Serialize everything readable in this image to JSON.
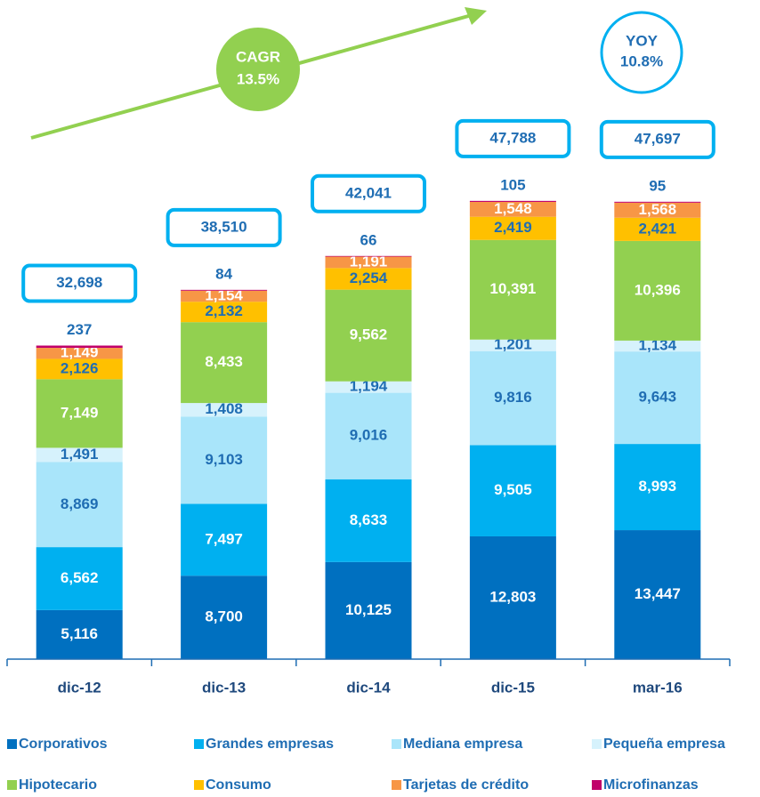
{
  "chart_data": {
    "type": "stacked_bar",
    "categories": [
      "dic-12",
      "dic-13",
      "dic-14",
      "dic-15",
      "mar-16"
    ],
    "series": [
      {
        "name": "Corporativos",
        "color": "#0070c0",
        "label_color": "#ffffff",
        "values": [
          5116,
          8700,
          10125,
          12803,
          13447
        ],
        "value_labels": [
          "5,116",
          "8,700",
          "10,125",
          "12,803",
          "13,447"
        ]
      },
      {
        "name": "Grandes empresas",
        "color": "#00b0f0",
        "label_color": "#ffffff",
        "values": [
          6562,
          7497,
          8633,
          9505,
          8993
        ],
        "value_labels": [
          "6,562",
          "7,497",
          "8,633",
          "9,505",
          "8,993"
        ]
      },
      {
        "name": "Mediana empresa",
        "color": "#a9e5fa",
        "label_color": "#1f6db3",
        "values": [
          8869,
          9103,
          9016,
          9816,
          9643
        ],
        "value_labels": [
          "8,869",
          "9,103",
          "9,016",
          "9,816",
          "9,643"
        ]
      },
      {
        "name": "Pequeña empresa",
        "color": "#d6f2fc",
        "label_color": "#1f6db3",
        "values": [
          1491,
          1408,
          1194,
          1201,
          1134
        ],
        "value_labels": [
          "1,491",
          "1,408",
          "1,194",
          "1,201",
          "1,134"
        ]
      },
      {
        "name": "Hipotecario",
        "color": "#92d050",
        "label_color": "#ffffff",
        "values": [
          7149,
          8433,
          9562,
          10391,
          10396
        ],
        "value_labels": [
          "7,149",
          "8,433",
          "9,562",
          "10,391",
          "10,396"
        ]
      },
      {
        "name": "Consumo",
        "color": "#ffc000",
        "label_color": "#1f6db3",
        "values": [
          2126,
          2132,
          2254,
          2419,
          2421
        ],
        "value_labels": [
          "2,126",
          "2,132",
          "2,254",
          "2,419",
          "2,421"
        ]
      },
      {
        "name": "Tarjetas de crédito",
        "color": "#f79646",
        "label_color": "#ffffff",
        "values": [
          1149,
          1154,
          1191,
          1548,
          1568
        ],
        "value_labels": [
          "1,149",
          "1,154",
          "1,191",
          "1,548",
          "1,568"
        ]
      },
      {
        "name": "Microfinanzas",
        "color": "#c0006a",
        "label_color": "#1f6db3",
        "label_position": "above",
        "values": [
          237,
          84,
          66,
          105,
          95
        ]
      }
    ],
    "totals": [
      32698,
      38510,
      42041,
      47788,
      47697
    ],
    "total_labels": [
      "32,698",
      "38,510",
      "42,041",
      "47,788",
      "47,697"
    ],
    "ylim": [
      0,
      50000
    ],
    "annotations": {
      "cagr": [
        "CAGR",
        "13.5%"
      ],
      "yoy": [
        "YOY",
        "10.8%"
      ]
    }
  }
}
